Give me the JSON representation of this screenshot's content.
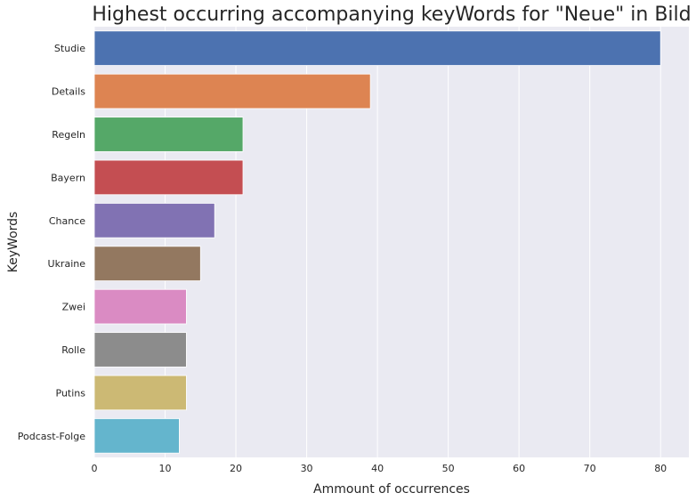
{
  "chart_data": {
    "type": "bar",
    "orientation": "horizontal",
    "title": "Highest occurring accompanying keyWords for \"Neue\" in Bild",
    "xlabel": "Ammount of occurrences",
    "ylabel": "KeyWords",
    "categories": [
      "Studie",
      "Details",
      "Regeln",
      "Bayern",
      "Chance",
      "Ukraine",
      "Zwei",
      "Rolle",
      "Putins",
      "Podcast-Folge"
    ],
    "values": [
      80,
      39,
      21,
      21,
      17,
      15,
      13,
      13,
      13,
      12
    ],
    "colors": [
      "#4c72b0",
      "#dd8452",
      "#55a868",
      "#c44e52",
      "#8172b3",
      "#937860",
      "#da8bc3",
      "#8c8c8c",
      "#ccb974",
      "#64b5cd"
    ],
    "xlim": [
      0,
      84
    ],
    "xticks": [
      0,
      10,
      20,
      30,
      40,
      50,
      60,
      70,
      80
    ],
    "grid": true,
    "background": "#eaeaf2"
  }
}
